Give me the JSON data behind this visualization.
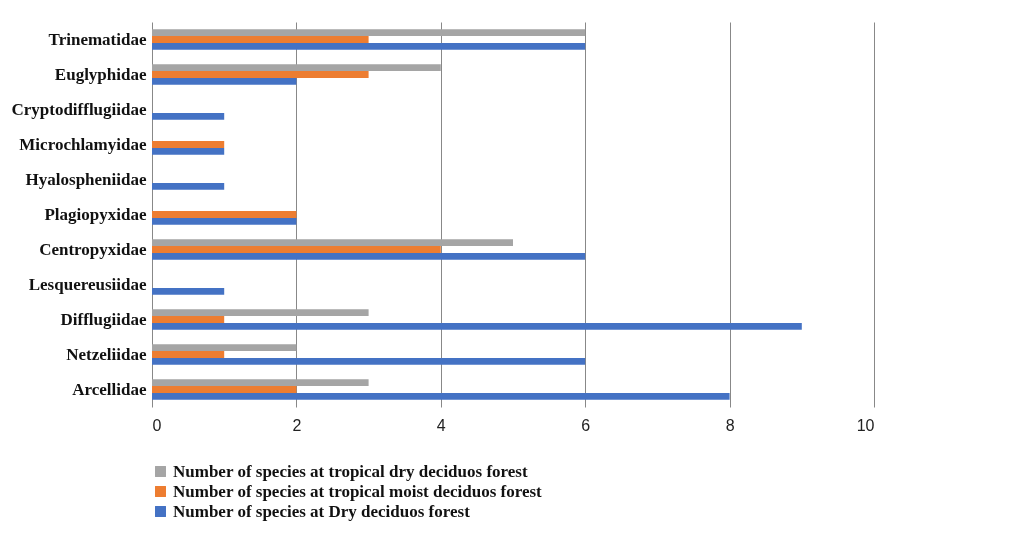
{
  "chart_data": {
    "type": "bar",
    "orientation": "horizontal",
    "categories": [
      "Trinematidae",
      "Euglyphidae",
      "Cryptodifflugiidae",
      "Microchlamyidae",
      "Hyalospheniidae",
      "Plagiopyxidae",
      "Centropyxidae",
      "Lesquereusiidae",
      "Difflugiidae",
      "Netzeliidae",
      "Arcellidae"
    ],
    "series": [
      {
        "name": "Number of species at tropical dry deciduos forest",
        "color": "#a5a5a5",
        "values": [
          6,
          4,
          0,
          0,
          0,
          0,
          5,
          0,
          3,
          2,
          3
        ]
      },
      {
        "name": "Number of species at  tropical moist deciduos forest",
        "color": "#ed7d31",
        "values": [
          3,
          3,
          0,
          1,
          0,
          2,
          4,
          0,
          1,
          1,
          2
        ]
      },
      {
        "name": "Number of species at Dry deciduos forest",
        "color": "#4472c4",
        "values": [
          6,
          2,
          1,
          1,
          1,
          2,
          6,
          1,
          9,
          6,
          8
        ]
      }
    ],
    "xlim": [
      0,
      10
    ],
    "xticks": [
      0,
      2,
      4,
      6,
      8,
      10
    ],
    "grid": "x",
    "legend": "bottom"
  }
}
